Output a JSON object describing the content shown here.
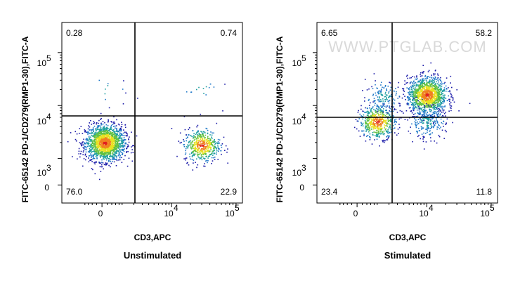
{
  "watermark": "WWW.PTGLAB.COM",
  "chart_data": [
    {
      "type": "scatter",
      "title": "",
      "caption": "Unstimulated",
      "xlabel": "CD3,APC",
      "ylabel": "FITC-65142 PD-1/CD279(RMP1-30),FITC-A",
      "x_scale": "biexponential",
      "y_scale": "biexponential",
      "x_ticks": [
        {
          "label": "0",
          "power": null
        },
        {
          "label": "10",
          "power": "4"
        },
        {
          "label": "10",
          "power": "5"
        }
      ],
      "y_ticks": [
        {
          "label": "0",
          "power": null
        },
        {
          "label": "10",
          "power": "3"
        },
        {
          "label": "10",
          "power": "4"
        },
        {
          "label": "10",
          "power": "5"
        }
      ],
      "gate": {
        "x": 3000,
        "y": 11000
      },
      "quadrants": {
        "upper_left": "0.28",
        "upper_right": "0.74",
        "lower_left": "76.0",
        "lower_right": "22.9"
      },
      "populations": [
        {
          "name": "CD3- PD-1-",
          "center": [
            100,
            2000
          ],
          "percent": 76.0
        },
        {
          "name": "CD3+ PD-1-",
          "center": [
            30000,
            1800
          ],
          "percent": 22.9
        },
        {
          "name": "CD3+ PD-1+",
          "center": [
            30000,
            20000
          ],
          "percent": 0.74
        },
        {
          "name": "CD3- PD-1+",
          "center": [
            200,
            20000
          ],
          "percent": 0.28
        }
      ],
      "colormap": [
        "#1a1aa8",
        "#1f78c8",
        "#20a0a0",
        "#60c040",
        "#e8e020",
        "#f08020",
        "#e02020"
      ]
    },
    {
      "type": "scatter",
      "title": "",
      "caption": "Stimulated",
      "xlabel": "CD3,APC",
      "ylabel": "FITC-65142 PD-1/CD279(RMP1-30),FITC-A",
      "x_scale": "biexponential",
      "y_scale": "biexponential",
      "x_ticks": [
        {
          "label": "0",
          "power": null
        },
        {
          "label": "10",
          "power": "4"
        },
        {
          "label": "10",
          "power": "5"
        }
      ],
      "y_ticks": [
        {
          "label": "0",
          "power": null
        },
        {
          "label": "10",
          "power": "3"
        },
        {
          "label": "10",
          "power": "4"
        },
        {
          "label": "10",
          "power": "5"
        }
      ],
      "gate": {
        "x": 3000,
        "y": 10000
      },
      "quadrants": {
        "upper_left": "6.65",
        "upper_right": "58.2",
        "lower_left": "23.4",
        "lower_right": "11.8"
      },
      "populations": [
        {
          "name": "CD3+ PD-1+",
          "center": [
            10000,
            16000
          ],
          "percent": 58.2
        },
        {
          "name": "CD3- PD-1-",
          "center": [
            1000,
            5000
          ],
          "percent": 23.4
        },
        {
          "name": "CD3+ PD-1-",
          "center": [
            10000,
            5000
          ],
          "percent": 11.8
        },
        {
          "name": "CD3- PD-1+",
          "center": [
            1500,
            15000
          ],
          "percent": 6.65
        }
      ],
      "colormap": [
        "#1a1aa8",
        "#1f78c8",
        "#20a0a0",
        "#60c040",
        "#e8e020",
        "#f08020",
        "#e02020"
      ]
    }
  ]
}
